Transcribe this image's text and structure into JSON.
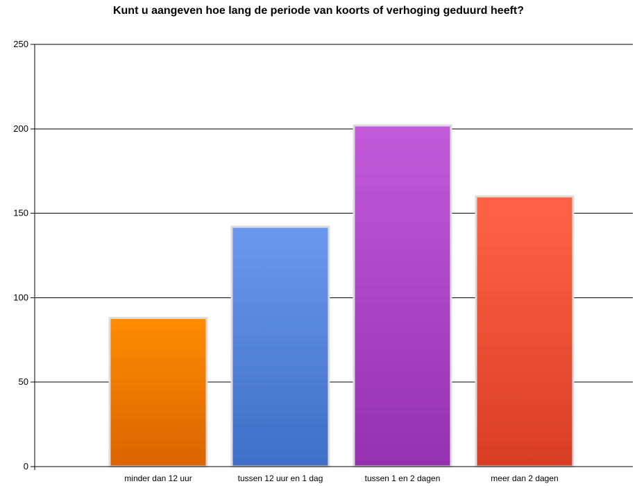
{
  "chart_data": {
    "type": "bar",
    "title": "Kunt u aangeven hoe lang de periode van koorts of verhoging geduurd heeft?",
    "xlabel": "",
    "ylabel": "",
    "categories": [
      "minder dan 12 uur",
      "tussen 12 uur en 1 dag",
      "tussen 1 en 2 dagen",
      "meer dan 2 dagen"
    ],
    "values": [
      88,
      142,
      202,
      160
    ],
    "ylim": [
      0,
      250
    ],
    "yticks": [
      0,
      50,
      100,
      150,
      200,
      250
    ],
    "grid": true,
    "legend": "none",
    "colors": [
      {
        "top": "#ff8c00",
        "bottom": "#d96400"
      },
      {
        "top": "#6a98ec",
        "bottom": "#3f6fc6"
      },
      {
        "top": "#c35bd9",
        "bottom": "#9530ae"
      },
      {
        "top": "#ff6347",
        "bottom": "#d83e24"
      }
    ],
    "bar_border": "#dcdcdc",
    "gridline_color": "#000000"
  }
}
